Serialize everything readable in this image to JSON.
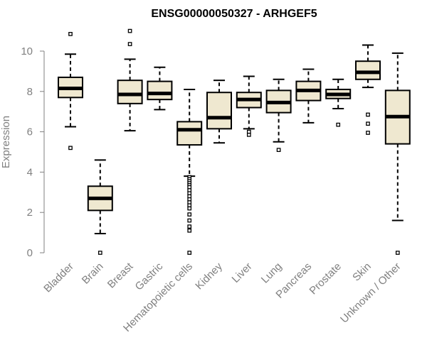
{
  "chart_data": {
    "type": "box",
    "title": "ENSG00000050327 - ARHGEF5",
    "xlabel": "",
    "ylabel": "Expression",
    "ylim": [
      0,
      10.5
    ],
    "yticks": [
      0,
      2,
      4,
      6,
      8,
      10
    ],
    "grid": false,
    "box_fill": "#efe8d0",
    "categories": [
      "Bladder",
      "Brain",
      "Breast",
      "Gastric",
      "Hematopoietic cells",
      "Kidney",
      "Liver",
      "Lung",
      "Pancreas",
      "Prostate",
      "Skin",
      "Unknown / Other"
    ],
    "boxes": [
      {
        "min": 6.25,
        "q1": 7.7,
        "median": 8.15,
        "q3": 8.7,
        "max": 9.85,
        "outliers": [
          10.85,
          5.2
        ]
      },
      {
        "min": 0.95,
        "q1": 2.1,
        "median": 2.7,
        "q3": 3.3,
        "max": 4.6,
        "outliers": [
          0.0
        ]
      },
      {
        "min": 6.05,
        "q1": 7.4,
        "median": 7.85,
        "q3": 8.55,
        "max": 9.6,
        "outliers": [
          11.0,
          10.35
        ]
      },
      {
        "min": 7.1,
        "q1": 7.6,
        "median": 7.9,
        "q3": 8.5,
        "max": 9.2,
        "outliers": []
      },
      {
        "min": 3.8,
        "q1": 5.35,
        "median": 6.1,
        "q3": 6.5,
        "max": 8.1,
        "outliers": [
          3.75,
          3.65,
          3.55,
          3.45,
          3.35,
          3.25,
          3.1,
          2.95,
          2.8,
          2.65,
          2.5,
          2.35,
          2.2,
          1.9,
          1.6,
          1.3,
          1.1,
          0.0
        ]
      },
      {
        "min": 5.45,
        "q1": 6.15,
        "median": 6.7,
        "q3": 7.95,
        "max": 8.55,
        "outliers": []
      },
      {
        "min": 6.15,
        "q1": 7.2,
        "median": 7.6,
        "q3": 7.95,
        "max": 8.75,
        "outliers": [
          6.0,
          5.85
        ]
      },
      {
        "min": 5.5,
        "q1": 6.95,
        "median": 7.45,
        "q3": 8.05,
        "max": 8.6,
        "outliers": [
          5.1
        ]
      },
      {
        "min": 6.45,
        "q1": 7.55,
        "median": 8.05,
        "q3": 8.5,
        "max": 9.1,
        "outliers": []
      },
      {
        "min": 7.15,
        "q1": 7.65,
        "median": 7.85,
        "q3": 8.1,
        "max": 8.6,
        "outliers": [
          6.35
        ]
      },
      {
        "min": 8.2,
        "q1": 8.6,
        "median": 8.95,
        "q3": 9.5,
        "max": 10.3,
        "outliers": [
          6.85,
          6.4,
          5.95
        ]
      },
      {
        "min": 1.6,
        "q1": 5.4,
        "median": 6.75,
        "q3": 8.05,
        "max": 9.9,
        "outliers": [
          0.0
        ]
      }
    ]
  }
}
